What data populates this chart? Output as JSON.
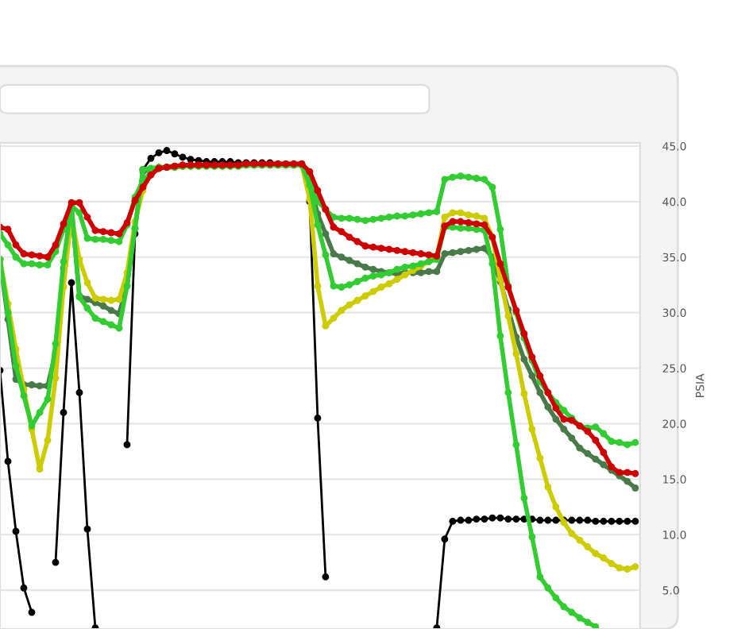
{
  "chart_data": {
    "type": "line",
    "ylabel": "PSIA",
    "ylim": [
      1.5,
      45.3
    ],
    "categories": [
      null,
      null,
      null,
      null,
      null,
      null,
      null,
      null,
      null,
      null,
      null,
      null,
      null,
      null,
      null,
      null,
      null,
      null,
      null,
      null,
      null,
      null,
      null,
      null,
      null,
      null,
      null,
      null,
      null,
      null,
      null,
      null,
      null,
      null,
      null,
      null,
      null,
      null,
      null,
      null,
      null,
      null,
      null,
      null,
      null,
      null,
      null,
      null,
      null,
      null,
      null,
      null,
      null,
      null,
      null,
      null,
      null,
      null,
      null,
      null,
      null,
      null,
      null,
      null,
      null,
      null,
      null,
      null,
      null,
      null,
      null,
      null,
      null,
      null,
      null,
      null,
      null,
      null,
      null,
      null,
      null
    ],
    "yticks": [
      {
        "value": 5,
        "label": "5.0"
      },
      {
        "value": 10,
        "label": "10.0"
      },
      {
        "value": 15,
        "label": "15.0"
      },
      {
        "value": 20,
        "label": "20.0"
      },
      {
        "value": 25,
        "label": "25.0"
      },
      {
        "value": 30,
        "label": "30.0"
      },
      {
        "value": 35,
        "label": "35.0"
      },
      {
        "value": 40,
        "label": "40.0"
      },
      {
        "value": 45,
        "label": "45.0"
      }
    ],
    "tick_labels": "y",
    "grid": "y",
    "marker": "circle",
    "line_style": "solid",
    "series": [
      {
        "color": "#000000",
        "values": [
          24.8,
          16.6,
          10.3,
          5.2,
          3.0,
          null,
          null,
          7.5,
          21.0,
          32.7,
          22.8,
          10.5,
          1.6,
          null,
          null,
          null,
          18.1,
          37.1,
          42.9,
          43.9,
          44.4,
          44.6,
          44.3,
          44.0,
          43.8,
          43.7,
          43.6,
          43.6,
          43.6,
          43.6,
          43.5,
          43.5,
          43.5,
          43.5,
          43.5,
          43.4,
          43.4,
          43.4,
          43.4,
          40.0,
          20.5,
          6.2,
          null,
          null,
          null,
          null,
          null,
          null,
          null,
          null,
          null,
          null,
          null,
          null,
          null,
          1.6,
          9.6,
          11.2,
          11.3,
          11.3,
          11.4,
          11.4,
          11.5,
          11.5,
          11.4,
          11.4,
          11.4,
          11.4,
          11.3,
          11.3,
          11.3,
          11.3,
          11.3,
          11.3,
          11.3,
          11.2,
          11.2,
          11.2,
          11.2,
          11.2,
          11.2
        ]
      },
      {
        "color": "#4a7a4a",
        "values": [
          34.8,
          29.4,
          24.0,
          23.5,
          23.5,
          23.4,
          23.4,
          26.4,
          34.0,
          39.5,
          31.5,
          31.2,
          30.9,
          30.6,
          30.2,
          29.9,
          32.4,
          37.6,
          42.7,
          42.9,
          43.0,
          43.1,
          43.1,
          43.2,
          43.2,
          43.2,
          43.2,
          43.2,
          43.2,
          43.2,
          43.2,
          43.3,
          43.3,
          43.3,
          43.3,
          43.3,
          43.3,
          43.3,
          43.3,
          41.7,
          38.9,
          37.1,
          35.3,
          35.0,
          34.7,
          34.4,
          34.1,
          33.9,
          33.7,
          33.6,
          33.5,
          33.6,
          33.6,
          33.6,
          33.7,
          33.7,
          35.3,
          35.4,
          35.5,
          35.6,
          35.7,
          35.8,
          35.0,
          32.8,
          30.3,
          27.8,
          25.8,
          24.3,
          22.8,
          21.5,
          20.4,
          19.5,
          18.7,
          17.8,
          17.3,
          16.8,
          16.3,
          15.8,
          15.3,
          14.8,
          14.2
        ]
      },
      {
        "color": "#cccc00",
        "values": [
          34.8,
          30.8,
          26.7,
          23.1,
          19.5,
          15.9,
          18.5,
          24.1,
          32.3,
          38.7,
          34.8,
          32.7,
          31.3,
          31.2,
          31.1,
          31.2,
          33.6,
          38.2,
          41.0,
          42.8,
          43.0,
          43.1,
          43.1,
          43.2,
          43.2,
          43.2,
          43.2,
          43.2,
          43.2,
          43.2,
          43.2,
          43.3,
          43.3,
          43.3,
          43.3,
          43.3,
          43.3,
          43.3,
          43.3,
          40.2,
          32.4,
          28.8,
          29.5,
          30.2,
          30.7,
          31.1,
          31.5,
          31.9,
          32.3,
          32.6,
          33.0,
          33.4,
          33.8,
          34.2,
          34.6,
          35.0,
          38.6,
          39.0,
          39.0,
          38.8,
          38.7,
          38.5,
          36.8,
          33.0,
          29.7,
          26.3,
          22.7,
          19.5,
          16.9,
          14.3,
          12.5,
          11.1,
          10.1,
          9.5,
          8.9,
          8.3,
          7.9,
          7.4,
          7.0,
          6.9,
          7.1
        ]
      },
      {
        "color": "#33cc33",
        "values": [
          34.8,
          30.0,
          25.2,
          22.5,
          19.8,
          21.0,
          22.2,
          27.2,
          34.6,
          39.7,
          31.4,
          30.4,
          29.5,
          29.2,
          28.9,
          28.6,
          32.4,
          37.6,
          42.9,
          43.0,
          43.1,
          43.1,
          43.2,
          43.2,
          43.2,
          43.2,
          43.2,
          43.2,
          43.2,
          43.2,
          43.2,
          43.3,
          43.3,
          43.3,
          43.3,
          43.3,
          43.3,
          43.3,
          43.3,
          41.5,
          37.9,
          35.2,
          32.4,
          32.3,
          32.5,
          32.8,
          33.1,
          33.3,
          33.4,
          33.6,
          33.9,
          34.1,
          34.2,
          34.4,
          34.6,
          34.8,
          37.7,
          37.7,
          37.6,
          37.6,
          37.5,
          37.4,
          34.4,
          27.9,
          22.8,
          18.1,
          13.3,
          9.8,
          6.2,
          5.2,
          4.3,
          3.5,
          3.0,
          2.5,
          2.1,
          1.7,
          null,
          null,
          null,
          null,
          null
        ]
      },
      {
        "color": "#33cc33",
        "values": [
          37.1,
          36.1,
          35.0,
          34.4,
          34.4,
          34.3,
          34.3,
          35.5,
          37.5,
          39.6,
          39.0,
          36.7,
          36.6,
          36.6,
          36.5,
          36.4,
          37.9,
          40.4,
          41.9,
          42.6,
          43.0,
          43.1,
          43.1,
          43.2,
          43.2,
          43.2,
          43.2,
          43.2,
          43.2,
          43.2,
          43.2,
          43.3,
          43.3,
          43.3,
          43.3,
          43.3,
          43.3,
          43.3,
          43.3,
          42.4,
          40.0,
          39.3,
          38.6,
          38.5,
          38.5,
          38.4,
          38.3,
          38.4,
          38.5,
          38.6,
          38.7,
          38.7,
          38.8,
          38.9,
          39.0,
          39.1,
          42.0,
          42.2,
          42.3,
          42.2,
          42.1,
          42.0,
          41.3,
          37.5,
          32.4,
          30.0,
          27.7,
          25.7,
          23.8,
          22.8,
          21.9,
          21.2,
          20.5,
          19.8,
          19.6,
          19.7,
          19.1,
          18.4,
          18.3,
          18.1,
          18.3
        ]
      },
      {
        "color": "#cc0000",
        "values": [
          37.7,
          37.5,
          36.1,
          35.3,
          35.2,
          35.1,
          35.0,
          36.1,
          38.0,
          39.9,
          39.9,
          38.6,
          37.4,
          37.3,
          37.2,
          37.1,
          38.1,
          40.1,
          41.3,
          42.4,
          43.0,
          43.1,
          43.2,
          43.3,
          43.3,
          43.3,
          43.3,
          43.3,
          43.3,
          43.3,
          43.3,
          43.4,
          43.4,
          43.4,
          43.4,
          43.4,
          43.4,
          43.4,
          43.4,
          42.7,
          41.0,
          39.3,
          37.7,
          37.3,
          36.8,
          36.4,
          36.0,
          35.9,
          35.8,
          35.7,
          35.6,
          35.5,
          35.4,
          35.3,
          35.2,
          35.1,
          37.8,
          38.2,
          38.2,
          38.1,
          38.0,
          37.9,
          36.8,
          34.4,
          32.3,
          30.2,
          28.1,
          26.0,
          24.3,
          22.8,
          21.4,
          20.4,
          20.3,
          19.8,
          19.3,
          18.5,
          17.4,
          16.1,
          15.6,
          15.6,
          15.5
        ]
      }
    ]
  }
}
